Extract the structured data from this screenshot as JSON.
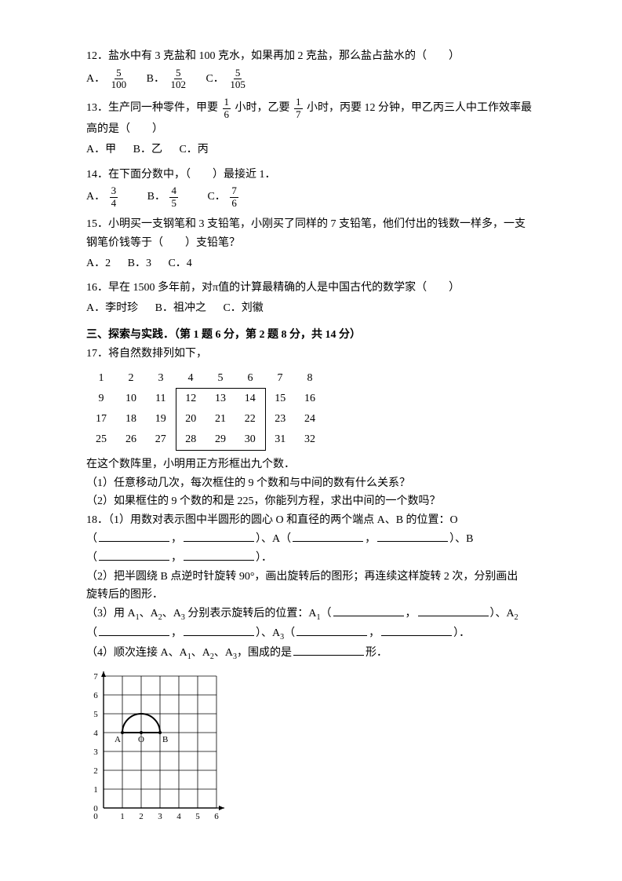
{
  "q12": {
    "text": "12．盐水中有 3 克盐和 100 克水，如果再加 2 克盐，那么盐占盐水的（　　）",
    "opts": {
      "a_label": "A．",
      "a_num": "5",
      "a_den": "100",
      "b_label": "B．",
      "b_num": "5",
      "b_den": "102",
      "c_label": "C．",
      "c_num": "5",
      "c_den": "105"
    }
  },
  "q13": {
    "pre": "13．生产同一种零件，甲要",
    "f1n": "1",
    "f1d": "6",
    "mid1": "小时，乙要",
    "f2n": "1",
    "f2d": "7",
    "post": "小时，丙要 12 分钟，甲乙丙三人中工作效率最",
    "line2": "高的是（　　）",
    "opts": {
      "a": "A．甲",
      "b": "B．乙",
      "c": "C．丙"
    }
  },
  "q14": {
    "text": "14．在下面分数中，（　　）最接近 1．",
    "opts": {
      "a_label": "A．",
      "a_num": "3",
      "a_den": "4",
      "b_label": "B．",
      "b_num": "4",
      "b_den": "5",
      "c_label": "C．",
      "c_num": "7",
      "c_den": "6"
    }
  },
  "q15": {
    "line1": "15．小明买一支钢笔和 3 支铅笔，小刚买了同样的 7 支铅笔，他们付出的钱数一样多，一支",
    "line2": "钢笔价钱等于（　　）支铅笔？",
    "opts": {
      "a": "A．2",
      "b": "B．3",
      "c": "C．4"
    }
  },
  "q16": {
    "text": "16．早在 1500 多年前，对π值的计算最精确的人是中国古代的数学家（　　）",
    "opts": {
      "a": "A．李时珍",
      "b": "B．祖冲之",
      "c": "C．刘徽"
    }
  },
  "section3": "三、探索与实践．（第 1 题 6 分，第 2 题 8 分，共 14 分）",
  "q17": {
    "intro": "17．将自然数排列如下，",
    "rows": [
      [
        "1",
        "2",
        "3",
        "4",
        "5",
        "6",
        "7",
        "8"
      ],
      [
        "9",
        "10",
        "11",
        "12",
        "13",
        "14",
        "15",
        "16"
      ],
      [
        "17",
        "18",
        "19",
        "20",
        "21",
        "22",
        "23",
        "24"
      ],
      [
        "25",
        "26",
        "27",
        "28",
        "29",
        "30",
        "31",
        "32"
      ]
    ],
    "after1": "在这个数阵里，小明用正方形框出九个数．",
    "sub1": "（1）任意移动几次，每次框住的 9 个数和与中间的数有什么关系？",
    "sub2": "（2）如果框住的 9 个数的和是 225，你能列方程，求出中间的一个数吗？"
  },
  "q18": {
    "p1_pre": "18．（1）用数对表示图中半圆形的圆心 O 和直径的两个端点 A、B 的位置：O",
    "p1_a": "）、A（",
    "p1_b": "）、B",
    "p1_end": "）．",
    "p2": "（2）把半圆绕 B 点逆时针旋转 90°，画出旋转后的图形；再连续这样旋转 2 次，分别画出",
    "p2b": "旋转后的图形．",
    "p3_pre": "（3）用 A",
    "p3_a1": "、A",
    "p3_a2": "、A",
    "p3_mid": " 分别表示旋转后的位置：A",
    "p3_paren1": "（",
    "p3_close1": "）、A",
    "p3_line2pre": "（",
    "p3_close2": "）、A",
    "p3_paren3": "（",
    "p3_close3": "）．",
    "p4_pre": "（4）顺次连接 A、A",
    "p4_a": "、A",
    "p4_b": "、A",
    "p4_post": "，围成的是",
    "p4_end": "形．",
    "grid": {
      "cols": 6,
      "rows": 7,
      "cell": 24,
      "labelsY": [
        "7",
        "6",
        "5",
        "4",
        "3",
        "2",
        "1",
        "0"
      ],
      "labelsX": [
        "0",
        "1",
        "2",
        "3",
        "4",
        "5",
        "6"
      ],
      "A": "A",
      "O": "O",
      "B": "B"
    }
  }
}
